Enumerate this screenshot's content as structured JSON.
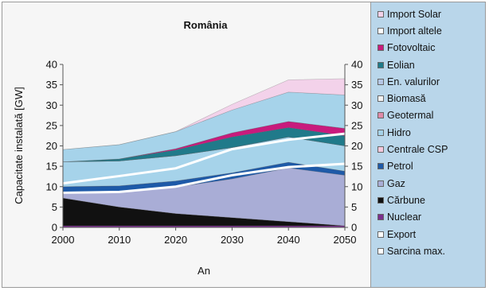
{
  "chart_data": {
    "type": "area",
    "stacked": true,
    "title": "România",
    "xlabel": "An",
    "ylabel": "Capacitate instalată [GW]",
    "x": [
      "2000",
      "2010",
      "2020",
      "2030",
      "2040",
      "2050"
    ],
    "ylim": [
      0,
      40
    ],
    "yticks": [
      "0",
      "5",
      "10",
      "15",
      "20",
      "25",
      "30",
      "35",
      "40"
    ],
    "y2ticks": [
      "0",
      "5",
      "10",
      "15",
      "20",
      "25",
      "30",
      "35",
      "40"
    ],
    "legend_position": "right",
    "series": [
      {
        "name": "Nuclear",
        "type": "area",
        "color": "#7b2f8e",
        "values": [
          0.4,
          0.4,
          0.4,
          0.4,
          0.4,
          0.4
        ]
      },
      {
        "name": "Cărbune",
        "type": "area",
        "color": "#111111",
        "values": [
          6.8,
          4.6,
          3.0,
          2.0,
          1.0,
          0.0
        ]
      },
      {
        "name": "Gaz",
        "type": "area",
        "color": "#a9add6",
        "values": [
          1.2,
          3.6,
          6.5,
          9.5,
          13.2,
          12.4
        ]
      },
      {
        "name": "Petrol",
        "type": "area",
        "color": "#1e5aa8",
        "values": [
          1.6,
          1.6,
          1.5,
          1.5,
          1.4,
          1.0
        ]
      },
      {
        "name": "Centrale CSP",
        "type": "area",
        "color": "#f4c9dd",
        "values": [
          0.0,
          0.0,
          0.0,
          0.0,
          0.0,
          0.0
        ]
      },
      {
        "name": "Hidro",
        "type": "area",
        "color": "#a6d3ea",
        "values": [
          6.1,
          6.1,
          6.2,
          6.2,
          6.2,
          6.2
        ]
      },
      {
        "name": "Geotermal",
        "type": "area",
        "color": "#e08aa8",
        "values": [
          0.0,
          0.0,
          0.0,
          0.0,
          0.0,
          0.0
        ]
      },
      {
        "name": "Biomasă",
        "type": "area",
        "color": "#f2f2f2",
        "values": [
          0.0,
          0.0,
          0.0,
          0.0,
          0.0,
          0.0
        ]
      },
      {
        "name": "En. valurilor",
        "type": "area",
        "color": "#b6c7e6",
        "values": [
          0.0,
          0.0,
          0.0,
          0.0,
          0.0,
          0.0
        ]
      },
      {
        "name": "Eolian",
        "type": "area",
        "color": "#207a8a",
        "values": [
          0.0,
          0.5,
          1.4,
          2.6,
          2.3,
          2.5
        ]
      },
      {
        "name": "Fotovoltaic",
        "type": "area",
        "color": "#c81b7d",
        "values": [
          0.0,
          0.0,
          0.3,
          1.0,
          1.5,
          1.8
        ]
      },
      {
        "name": "Import altele",
        "type": "area",
        "color": "#ffffff",
        "values": [
          0.0,
          0.0,
          0.0,
          0.0,
          0.0,
          0.0
        ]
      },
      {
        "name": "Import Solar",
        "type": "area",
        "color": "#f3d2ea",
        "values": [
          0.0,
          0.0,
          0.0,
          0.0,
          0.0,
          0.0
        ]
      },
      {
        "name": "Export",
        "type": "line",
        "color": "#ffffff",
        "values": [
          8.5,
          8.7,
          10.0,
          12.8,
          14.8,
          15.6
        ]
      },
      {
        "name": "Sarcina max.",
        "type": "line",
        "color": "#ffffff",
        "values": [
          10.8,
          12.6,
          14.5,
          19.2,
          21.5,
          23.0
        ]
      }
    ],
    "top_bands": [
      {
        "color": "#a6d3ea",
        "values": [
          3.0,
          3.5,
          4.2,
          5.6,
          7.2,
          8.2
        ]
      },
      {
        "color": "#f3d2ea",
        "values": [
          0.0,
          0.0,
          0.0,
          1.4,
          3.0,
          4.0
        ]
      }
    ]
  },
  "legend": {
    "items": [
      {
        "label": "Import Solar",
        "color": "#f3d2ea"
      },
      {
        "label": "Import altele",
        "color": "#ffffff"
      },
      {
        "label": "Fotovoltaic",
        "color": "#c81b7d"
      },
      {
        "label": "Eolian",
        "color": "#207a8a"
      },
      {
        "label": "En. valurilor",
        "color": "#b6c7e6"
      },
      {
        "label": "Biomasă",
        "color": "#f2f2f2"
      },
      {
        "label": "Geotermal",
        "color": "#e08aa8"
      },
      {
        "label": "Hidro",
        "color": "#a6d3ea"
      },
      {
        "label": "Centrale CSP",
        "color": "#f4c9dd"
      },
      {
        "label": "Petrol",
        "color": "#1e5aa8"
      },
      {
        "label": "Gaz",
        "color": "#a9add6"
      },
      {
        "label": "Cărbune",
        "color": "#111111"
      },
      {
        "label": "Nuclear",
        "color": "#7b2f8e"
      },
      {
        "label": "Export",
        "color": "#ffffff"
      },
      {
        "label": "Sarcina max.",
        "color": "#ffffff"
      }
    ]
  }
}
